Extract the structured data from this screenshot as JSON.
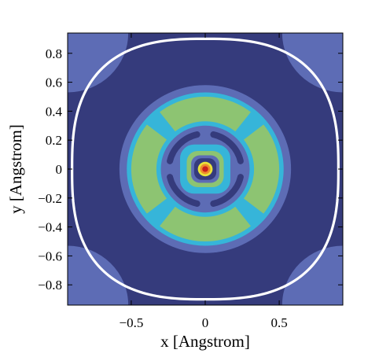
{
  "chart_data": {
    "type": "heatmap",
    "title": "",
    "xlabel": "x  [Angstrom]",
    "ylabel": "y  [Angstrom]",
    "xlim": [
      -0.93,
      0.93
    ],
    "ylim": [
      -0.94,
      0.94
    ],
    "xticks": [
      -0.5,
      0,
      0.5
    ],
    "xtick_labels": [
      "−0.5",
      "0",
      "0.5"
    ],
    "yticks": [
      0.8,
      0.6,
      0.4,
      0.2,
      0,
      -0.2,
      -0.4,
      -0.6,
      -0.8
    ],
    "ytick_labels": [
      "0.8",
      "0.6",
      "0.4",
      "0.2",
      "0",
      "−0.2",
      "−0.4",
      "−0.6",
      "−0.8"
    ],
    "grid": false,
    "legend": "none",
    "colors": {
      "level_1_background": "#353b7c",
      "level_2": "#5d6cb5",
      "level_3": "#36b5d9",
      "level_4": "#8dc472",
      "peak_outer": "#e8e23a",
      "peak_mid": "#ee8a2e",
      "peak_core": "#c8201e",
      "boundary": "#ffffff"
    },
    "contour_regions": [
      {
        "level": 2,
        "shape": "corner lobes",
        "centers": [
          [
            -0.93,
            0.94
          ],
          [
            0.93,
            0.94
          ],
          [
            -0.93,
            -0.94
          ],
          [
            0.93,
            -0.94
          ]
        ],
        "radius": 0.41
      },
      {
        "level": "boundary",
        "shape": "rounded square",
        "half_width": 0.9
      },
      {
        "level": 2,
        "shape": "ring",
        "outer_radius": 0.58
      },
      {
        "level": 3,
        "shape": "ring",
        "outer_radius": 0.53,
        "inner_radius": 0.3
      },
      {
        "level": 4,
        "shape": "4 crescents",
        "radius": 0.4,
        "angles_deg": [
          90,
          180,
          270,
          0
        ]
      },
      {
        "level": 2,
        "shape": "ring",
        "radius": 0.3
      },
      {
        "level": 1,
        "shape": "4 arcs",
        "radius": 0.24
      },
      {
        "level": 3,
        "shape": "rounded square",
        "half_width": 0.17
      },
      {
        "level": 4,
        "shape": "rounded square",
        "half_width": 0.12
      },
      {
        "level": 2,
        "shape": "rounded square",
        "half_width": 0.09
      },
      {
        "level": 1,
        "shape": "rounded square",
        "half_width": 0.075
      },
      {
        "level": "peak",
        "shape": "nested discs",
        "center": [
          0,
          0
        ],
        "radius": 0.05
      }
    ]
  }
}
